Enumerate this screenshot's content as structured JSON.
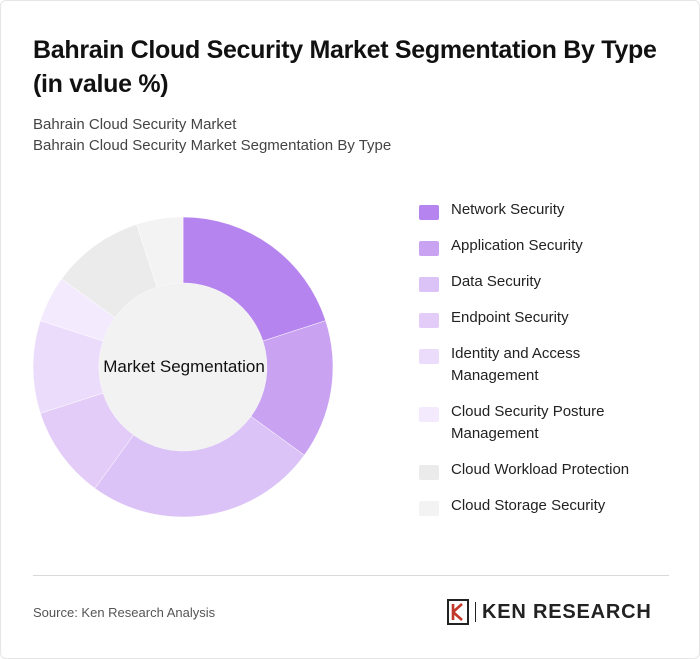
{
  "title": "Bahrain Cloud Security Market Segmentation By Type (in value %)",
  "subtitle_line1": "Bahrain Cloud Security Market",
  "subtitle_line2": "Bahrain Cloud Security Market Segmentation By Type",
  "source": "Source: Ken Research Analysis",
  "logo_text": "KEN RESEARCH",
  "chart_data": {
    "type": "pie",
    "center_label": "Market Segmentation",
    "legend_position": "right",
    "categories": [
      "Network Security",
      "Application Security",
      "Data Security",
      "Endpoint Security",
      "Identity and Access Management",
      "Cloud Security Posture Management",
      "Cloud Workload Protection",
      "Cloud Storage Security"
    ],
    "values": [
      20,
      15,
      25,
      10,
      10,
      5,
      10,
      5
    ],
    "colors": [
      "#b684ef",
      "#c9a3f2",
      "#dcc3f7",
      "#e3cdf8",
      "#ecdcfb",
      "#f3eafd",
      "#ebebeb",
      "#f3f3f3"
    ]
  }
}
